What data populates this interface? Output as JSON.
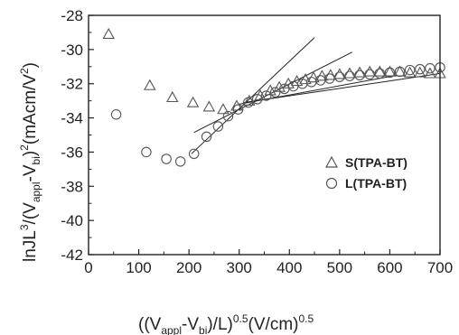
{
  "chart_data": {
    "type": "scatter",
    "title": "",
    "xlabel": "((V_appl-V_bi)/L)^0.5(V/cm)^0.5",
    "ylabel": "lnJL^3/(V_appl-V_bi)^2(mAcm/V^2)",
    "xlim": [
      0,
      700
    ],
    "ylim": [
      -42,
      -28
    ],
    "xticks": [
      "0",
      "100",
      "200",
      "300",
      "400",
      "500",
      "600",
      "700"
    ],
    "yticks": [
      "-28",
      "-30",
      "-32",
      "-34",
      "-36",
      "-38",
      "-40",
      "-42"
    ],
    "grid": false,
    "legend_position": "right",
    "series": [
      {
        "name": "S(TPA-BT)",
        "marker": "triangle",
        "x": [
          40,
          122,
          167,
          208,
          240,
          268,
          295,
          320,
          342,
          362,
          380,
          398,
          415,
          432,
          448,
          465,
          482,
          500,
          520,
          540,
          560,
          580,
          600,
          620,
          640,
          660,
          680,
          700
        ],
        "y": [
          -29.1,
          -32.1,
          -32.8,
          -33.1,
          -33.35,
          -33.5,
          -33.3,
          -33.0,
          -32.7,
          -32.4,
          -32.2,
          -32.0,
          -31.85,
          -31.75,
          -31.65,
          -31.55,
          -31.5,
          -31.45,
          -31.4,
          -31.35,
          -31.3,
          -31.3,
          -31.3,
          -31.3,
          -31.35,
          -31.35,
          -31.4,
          -31.4
        ]
      },
      {
        "name": "L(TPA-BT)",
        "marker": "circle",
        "x": [
          55,
          115,
          155,
          183,
          210,
          235,
          258,
          278,
          298,
          318,
          336,
          354,
          372,
          390,
          408,
          426,
          444,
          462,
          480,
          500,
          520,
          540,
          560,
          580,
          600,
          620,
          640,
          660,
          680,
          700
        ],
        "y": [
          -33.8,
          -36.0,
          -36.4,
          -36.55,
          -36.1,
          -35.1,
          -34.5,
          -33.9,
          -33.5,
          -33.1,
          -32.9,
          -32.7,
          -32.5,
          -32.3,
          -32.15,
          -32.0,
          -31.9,
          -31.8,
          -31.7,
          -31.6,
          -31.55,
          -31.5,
          -31.45,
          -31.4,
          -31.35,
          -31.3,
          -31.2,
          -31.15,
          -31.1,
          -31.05
        ]
      }
    ],
    "fit_lines": [
      {
        "x": [
          205,
          450
        ],
        "y": [
          -36.1,
          -29.3
        ]
      },
      {
        "x": [
          210,
          525
        ],
        "y": [
          -34.85,
          -30.15
        ]
      },
      {
        "x": [
          300,
          615
        ],
        "y": [
          -33.2,
          -31.5
        ]
      },
      {
        "x": [
          310,
          700
        ],
        "y": [
          -33.1,
          -31.4
        ]
      }
    ],
    "colors": {
      "axis": "#222222",
      "marker": "#555555",
      "line": "#222222"
    }
  }
}
